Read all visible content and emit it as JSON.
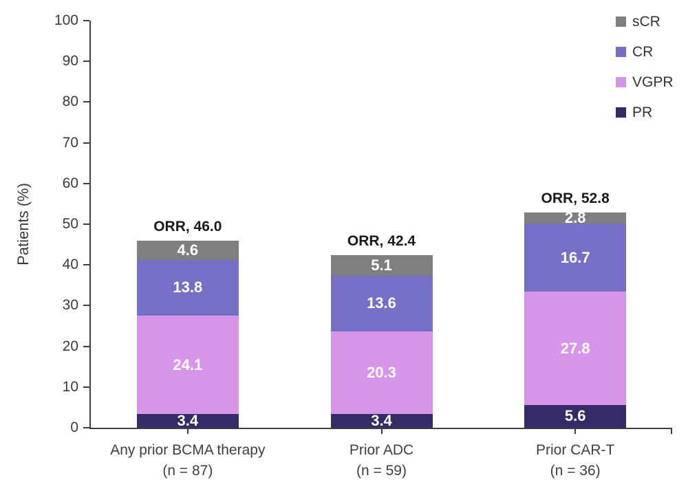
{
  "chart_data": {
    "type": "bar",
    "stacked": true,
    "ylabel": "Patients (%)",
    "ylim": [
      0,
      100
    ],
    "yticks": [
      0,
      10,
      20,
      30,
      40,
      50,
      60,
      70,
      80,
      90,
      100
    ],
    "grid": false,
    "categories": [
      {
        "line1": "Any prior BCMA therapy",
        "line2": "(n = 87)"
      },
      {
        "line1": "Prior ADC",
        "line2": "(n = 59)"
      },
      {
        "line1": "Prior CAR-T",
        "line2": "(n = 36)"
      }
    ],
    "series": [
      {
        "name": "PR",
        "color": "#332c66",
        "values": [
          3.4,
          3.4,
          5.6
        ]
      },
      {
        "name": "VGPR",
        "color": "#d795ea",
        "values": [
          24.1,
          20.3,
          27.8
        ]
      },
      {
        "name": "CR",
        "color": "#7570c5",
        "values": [
          13.8,
          13.6,
          16.7
        ]
      },
      {
        "name": "sCR",
        "color": "#7f7f7f",
        "values": [
          4.6,
          5.1,
          2.8
        ]
      }
    ],
    "totals_labels": [
      "ORR, 46.0",
      "ORR, 42.4",
      "ORR, 52.8"
    ],
    "legend": {
      "position": "top-right",
      "order": [
        "sCR",
        "CR",
        "VGPR",
        "PR"
      ]
    },
    "colors": {
      "axis": "#3f3f3f",
      "tick_text": "#3a3a3a",
      "category_text": "#3f3f3f",
      "value_label_text": "#ffffff",
      "orr_label_text": "#1a1a1a",
      "background": "#ffffff"
    }
  }
}
